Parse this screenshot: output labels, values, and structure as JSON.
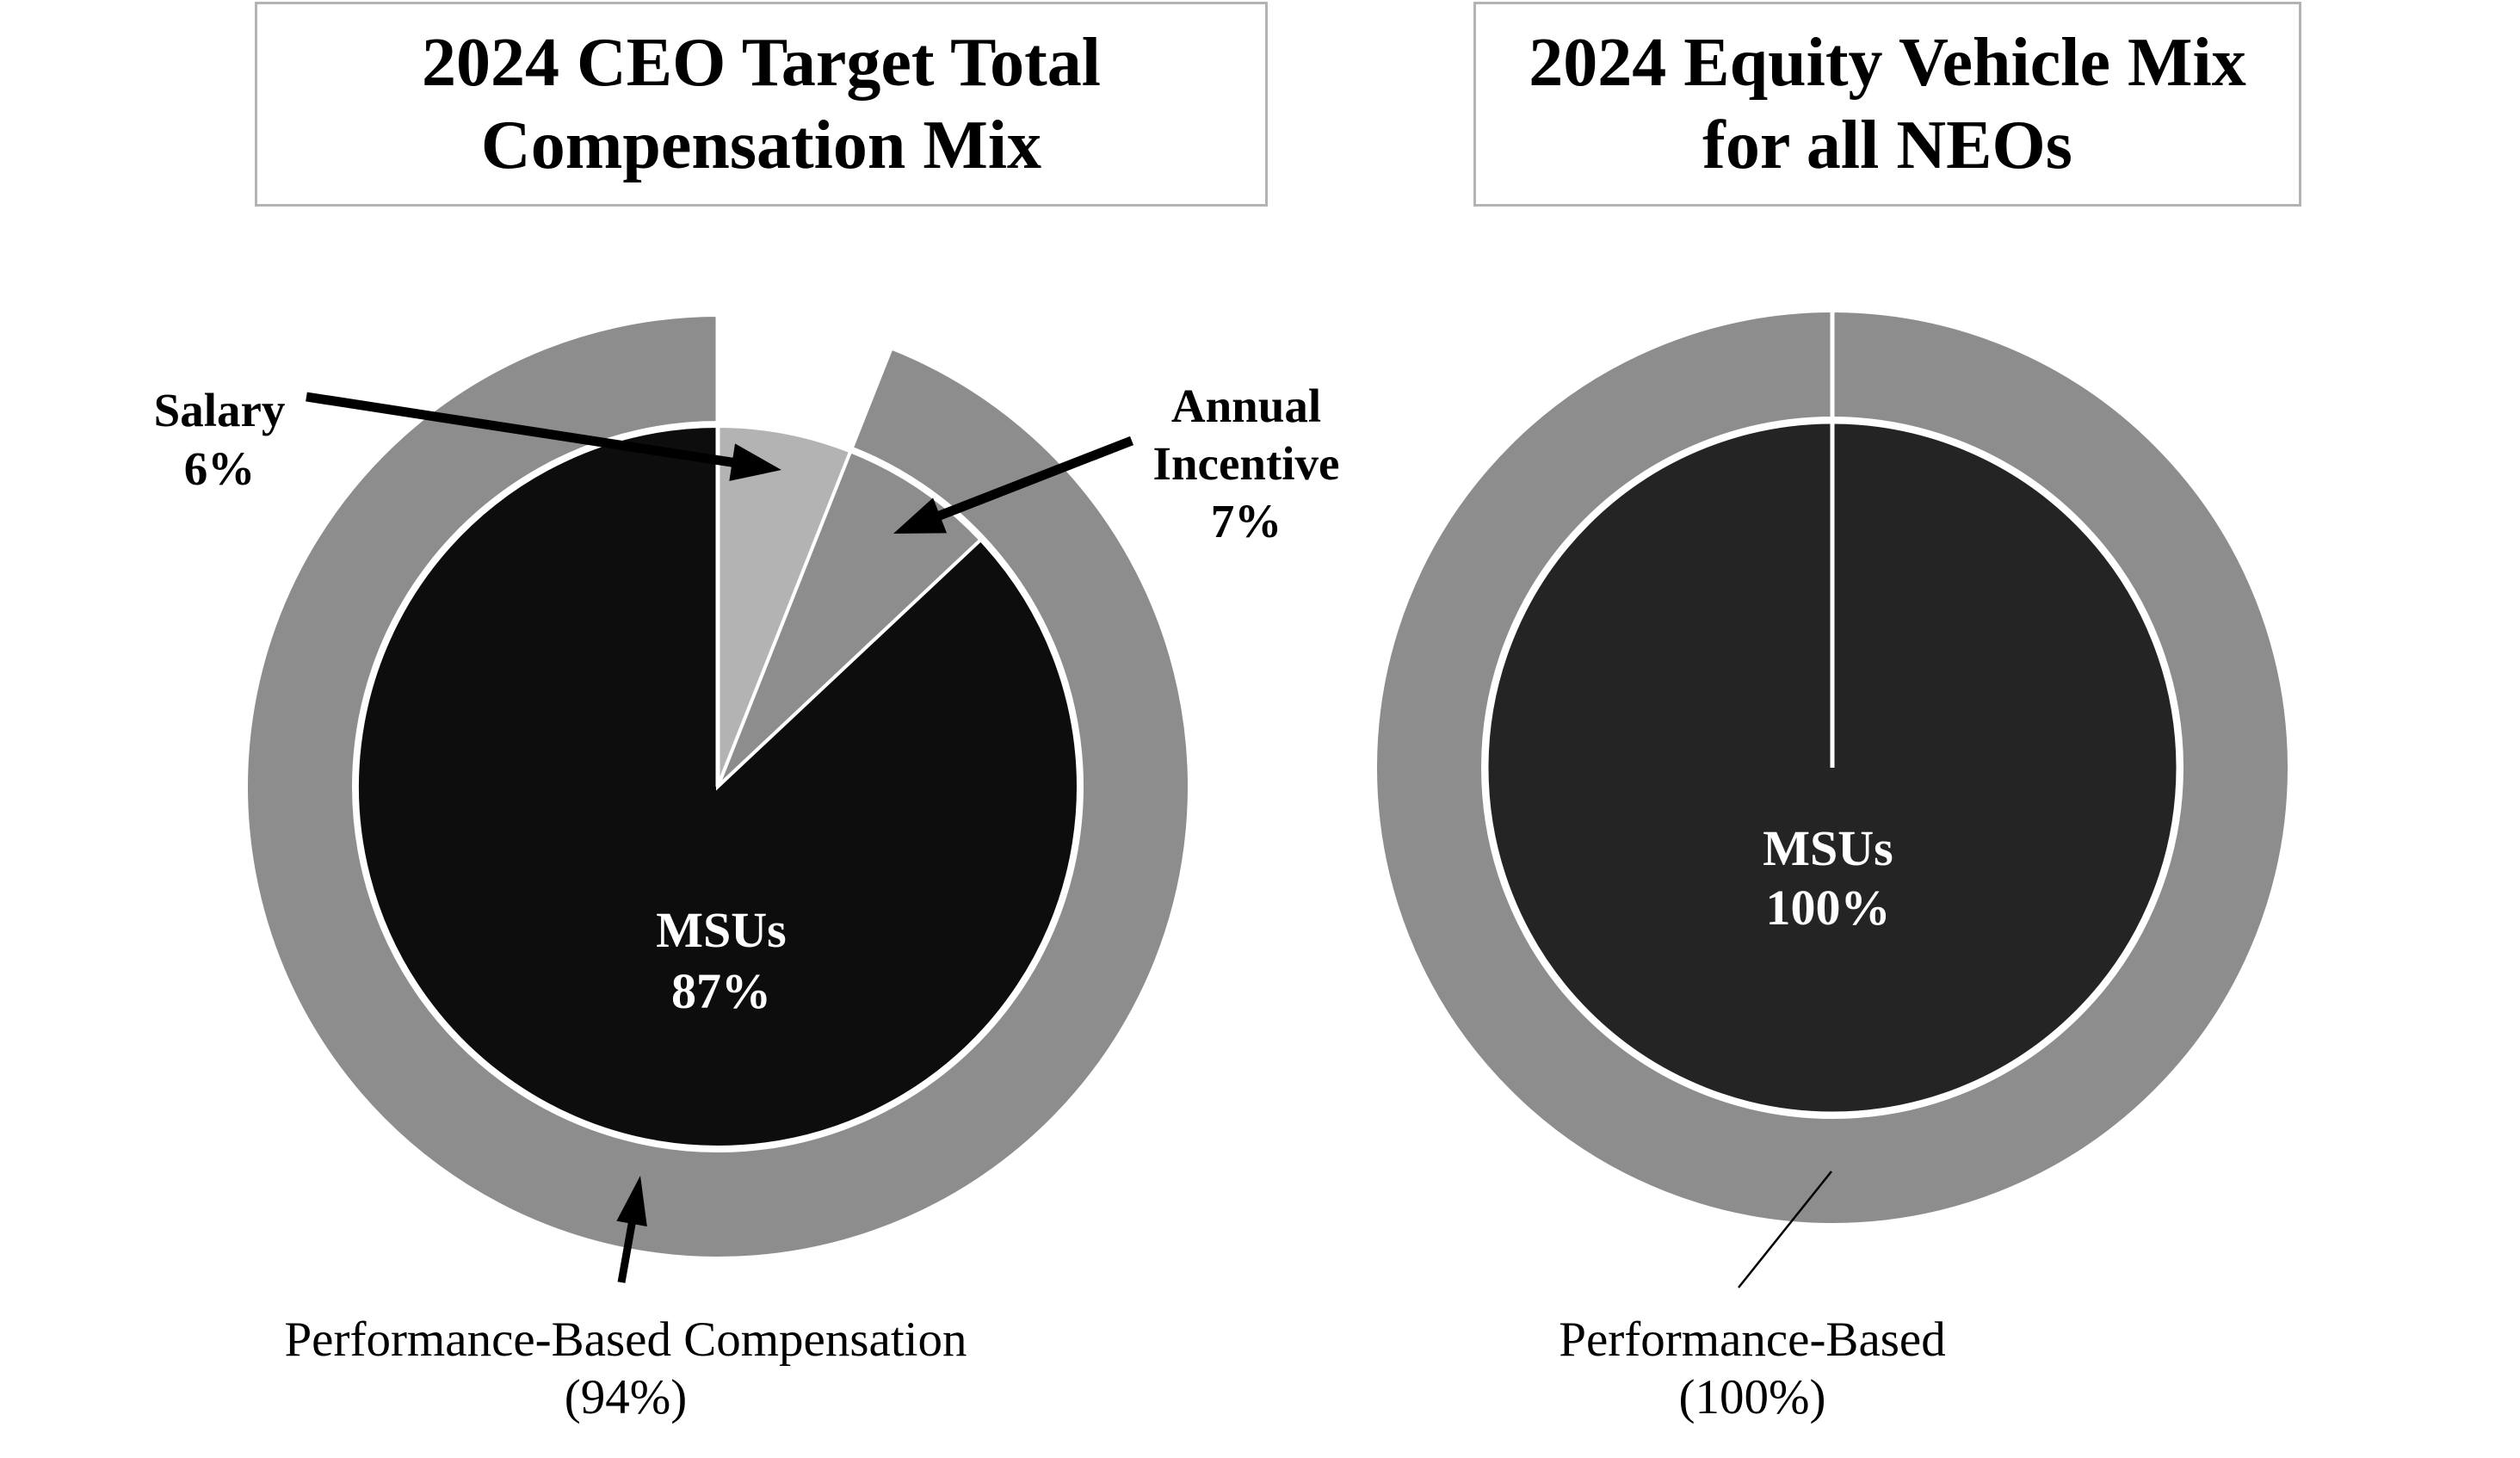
{
  "page": {
    "background": "#ffffff"
  },
  "left_chart": {
    "title_line1": "2024 CEO Target Total",
    "title_line2": "Compensation Mix",
    "salary_label_line1": "Salary",
    "salary_label_line2": "6%",
    "annual_label_line1": "Annual",
    "annual_label_line2": "Incentive",
    "annual_label_line3": "7%",
    "center_label_line1": "MSUs",
    "center_label_line2": "87%",
    "ring_label_line1": "Performance-Based Compensation",
    "ring_label_line2": "(94%)"
  },
  "right_chart": {
    "title_line1": "2024 Equity Vehicle Mix",
    "title_line2": "for all NEOs",
    "center_label_line1": "MSUs",
    "center_label_line2": "100%",
    "ring_label_line1": "Performance-Based",
    "ring_label_line2": "(100%)"
  },
  "colors": {
    "ring_gray": "#8d8d8d",
    "salary_gray": "#b3b3b3",
    "left_pie_black": "#0d0d0d",
    "right_pie_black": "#242424",
    "title_border": "#b3b3b3",
    "white": "#ffffff",
    "text_black": "#000000"
  },
  "chart_data": [
    {
      "type": "pie",
      "title": "2024 CEO Target Total Compensation Mix",
      "direction": "clockwise",
      "start_angle_deg": 0,
      "slices": [
        {
          "label": "Salary",
          "value": 6,
          "color": "#b3b3b3"
        },
        {
          "label": "Annual Incentive",
          "value": 7,
          "color": "#8d8d8d"
        },
        {
          "label": "MSUs",
          "value": 87,
          "color": "#0d0d0d"
        }
      ],
      "outer_ring": {
        "label": "Performance-Based Compensation",
        "value": 94,
        "color": "#8d8d8d"
      },
      "center_label": "MSUs 87%",
      "legend": "none",
      "grid": false
    },
    {
      "type": "pie",
      "title": "2024 Equity Vehicle Mix for all NEOs",
      "direction": "clockwise",
      "start_angle_deg": 0,
      "slices": [
        {
          "label": "MSUs",
          "value": 100,
          "color": "#242424"
        }
      ],
      "outer_ring": {
        "label": "Performance-Based",
        "value": 100,
        "color": "#8d8d8d"
      },
      "center_label": "MSUs 100%",
      "legend": "none",
      "grid": false
    }
  ]
}
